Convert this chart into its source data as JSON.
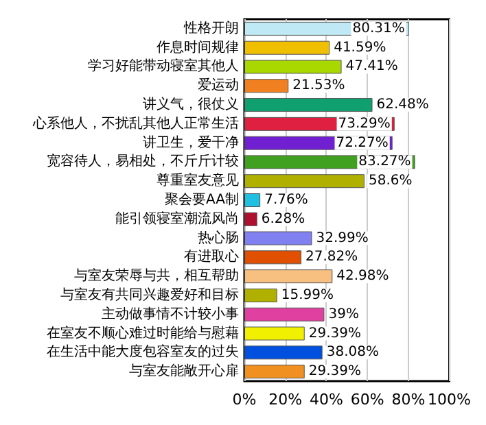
{
  "chart_data": {
    "type": "bar",
    "orientation": "horizontal",
    "categories": [
      "性格开朗",
      "作息时间规律",
      "学习好能带动寝室其他人",
      "爱运动",
      "讲义气，很仗义",
      "心系他人，不扰乱其他人正常生活",
      "讲卫生，爱干净",
      "宽容待人，易相处，不斤斤计较",
      "尊重室友意见",
      "聚会要AA制",
      "能引领寝室潮流风尚",
      "热心肠",
      "有进取心",
      "与室友荣辱与共，相互帮助",
      "与室友有共同兴趣爱好和目标",
      "主动做事情不计较小事",
      "在室友不顺心难过时能给与慰藉",
      "在生活中能大度包容室友的过失",
      "与室友能敞开心扉"
    ],
    "values": [
      80.31,
      41.59,
      47.41,
      21.53,
      62.48,
      73.29,
      72.27,
      83.27,
      58.6,
      7.76,
      6.28,
      32.99,
      27.82,
      42.98,
      15.99,
      39,
      29.39,
      38.08,
      29.39
    ],
    "value_labels": [
      "80.31%",
      "41.59%",
      "47.41%",
      "21.53%",
      "62.48%",
      "73.29%",
      "72.27%",
      "83.27%",
      "58.6%",
      "7.76%",
      "6.28%",
      "32.99%",
      "27.82%",
      "42.98%",
      "15.99%",
      "39%",
      "29.39%",
      "38.08%",
      "29.39%"
    ],
    "colors": [
      "#bfeaf5",
      "#f0c000",
      "#a8d800",
      "#f08020",
      "#10a070",
      "#e02040",
      "#7020d0",
      "#40a020",
      "#b0b000",
      "#20c0e0",
      "#b01030",
      "#8080f0",
      "#e05000",
      "#f8c080",
      "#b0b000",
      "#e040a0",
      "#f0f000",
      "#0050e0",
      "#f09020"
    ],
    "xlim": [
      0,
      100
    ],
    "xticks": [
      {
        "value": 0,
        "label": "0%"
      },
      {
        "value": 20,
        "label": "20%"
      },
      {
        "value": 40,
        "label": "40%"
      },
      {
        "value": 60,
        "label": "60%"
      },
      {
        "value": 80,
        "label": "80%"
      },
      {
        "value": 100,
        "label": "100%"
      }
    ],
    "grid": "x"
  }
}
